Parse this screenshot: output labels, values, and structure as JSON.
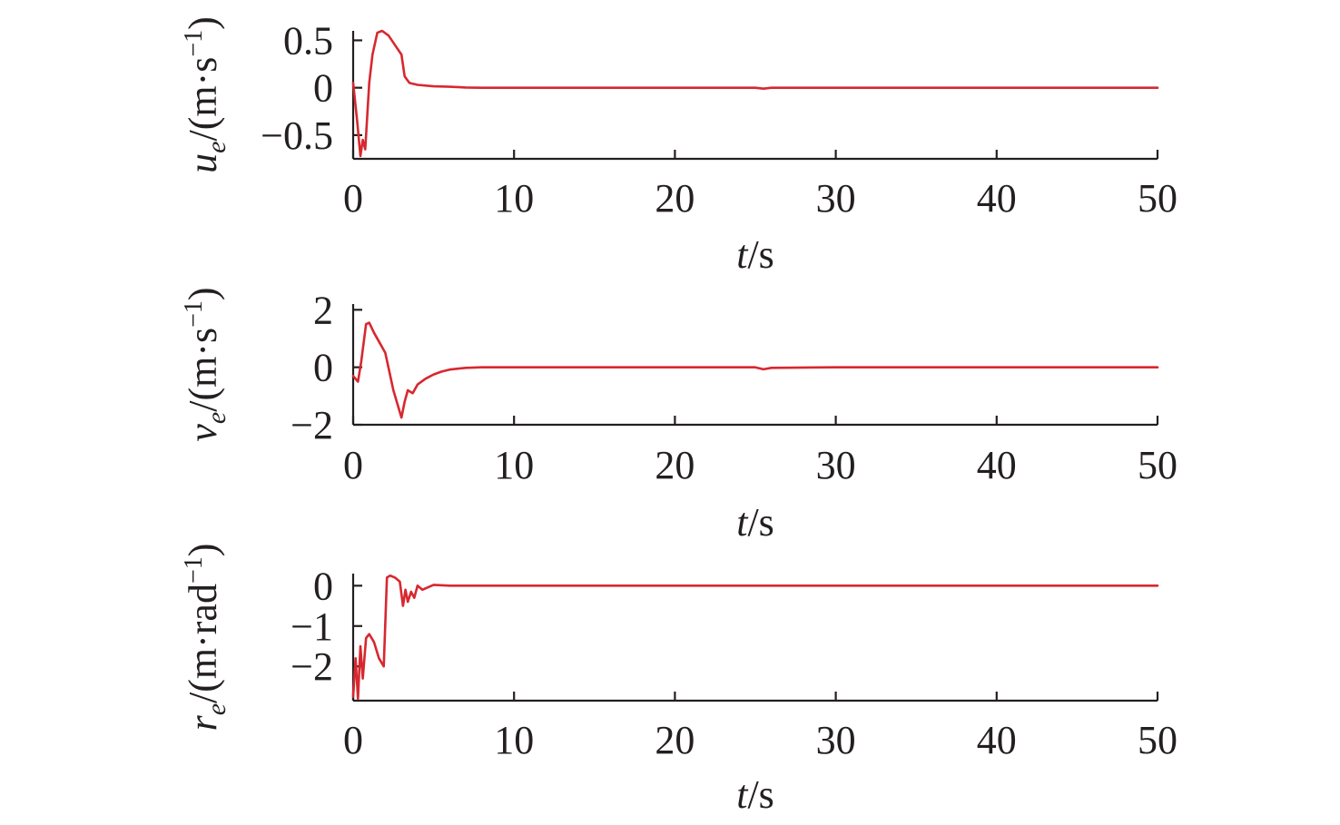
{
  "chart_data": [
    {
      "type": "line",
      "xlabel_italic": "t",
      "xlabel_rest": "/s",
      "ylabel": {
        "var": "u",
        "sub": "e",
        "unit": "/(m·s",
        "sup": "−1",
        "close": ")"
      },
      "xlim": [
        0,
        50
      ],
      "ylim": [
        -0.75,
        0.6
      ],
      "xticks": [
        0,
        10,
        20,
        30,
        40,
        50
      ],
      "xtick_labels": [
        "0",
        "10",
        "20",
        "30",
        "40",
        "50"
      ],
      "yticks": [
        0.5,
        0,
        -0.5
      ],
      "ytick_labels": [
        "0.5",
        "0",
        "−0.5"
      ],
      "grid": false,
      "series": [
        {
          "color": "#d7282f",
          "x": [
            0,
            0.25,
            0.45,
            0.6,
            0.75,
            1.0,
            1.2,
            1.5,
            1.8,
            2.2,
            2.6,
            3.0,
            3.2,
            3.5,
            4.0,
            5.0,
            6.0,
            7.0,
            8.0,
            10,
            20,
            25,
            25.5,
            26,
            30,
            40,
            50
          ],
          "y": [
            0.05,
            -0.35,
            -0.72,
            -0.55,
            -0.65,
            0.05,
            0.35,
            0.58,
            0.6,
            0.55,
            0.45,
            0.35,
            0.12,
            0.05,
            0.03,
            0.015,
            0.01,
            0.003,
            0.0,
            0.0,
            0.0,
            0.0,
            -0.01,
            0.0,
            0.0,
            0.0,
            0.0
          ]
        }
      ]
    },
    {
      "type": "line",
      "xlabel_italic": "t",
      "xlabel_rest": "/s",
      "ylabel": {
        "var": "v",
        "sub": "e",
        "unit": "/(m·s",
        "sup": "−1",
        "close": ")"
      },
      "xlim": [
        0,
        50
      ],
      "ylim": [
        -2,
        2.2
      ],
      "xticks": [
        0,
        10,
        20,
        30,
        40,
        50
      ],
      "xtick_labels": [
        "0",
        "10",
        "20",
        "30",
        "40",
        "50"
      ],
      "yticks": [
        2,
        0,
        -2
      ],
      "ytick_labels": [
        "2",
        "0",
        "−2"
      ],
      "grid": false,
      "series": [
        {
          "color": "#d7282f",
          "x": [
            0,
            0.3,
            0.5,
            0.8,
            1.0,
            1.3,
            1.7,
            2.0,
            2.5,
            3.0,
            3.2,
            3.4,
            3.7,
            4.0,
            4.5,
            5.0,
            5.5,
            6.0,
            7.0,
            8.0,
            10,
            25,
            25.5,
            26,
            30,
            50
          ],
          "y": [
            -0.3,
            -0.5,
            0.2,
            1.5,
            1.55,
            1.2,
            0.8,
            0.5,
            -0.8,
            -1.75,
            -1.2,
            -0.8,
            -0.9,
            -0.6,
            -0.4,
            -0.25,
            -0.15,
            -0.08,
            -0.02,
            0.0,
            0.0,
            0.0,
            -0.07,
            -0.02,
            0.0,
            0.0
          ]
        }
      ]
    },
    {
      "type": "line",
      "xlabel_italic": "t",
      "xlabel_rest": "/s",
      "ylabel": {
        "var": "r",
        "sub": "e",
        "unit": "/(m·rad",
        "sup": "−1",
        "close": ")"
      },
      "xlim": [
        0,
        50
      ],
      "ylim": [
        -2.85,
        0.3
      ],
      "xticks": [
        0,
        10,
        20,
        30,
        40,
        50
      ],
      "xtick_labels": [
        "0",
        "10",
        "20",
        "30",
        "40",
        "50"
      ],
      "yticks": [
        0,
        -1,
        -2
      ],
      "ytick_labels": [
        "0",
        "−1",
        "−2"
      ],
      "grid": false,
      "series": [
        {
          "color": "#d7282f",
          "x": [
            0,
            0.15,
            0.3,
            0.45,
            0.6,
            0.8,
            1.0,
            1.3,
            1.6,
            1.9,
            2.1,
            2.3,
            2.6,
            2.9,
            3.1,
            3.25,
            3.4,
            3.6,
            3.8,
            4.0,
            4.3,
            5.0,
            6.0,
            8.0,
            10,
            50
          ],
          "y": [
            -2.75,
            -1.8,
            -2.8,
            -1.5,
            -2.3,
            -1.3,
            -1.2,
            -1.4,
            -1.8,
            -2.0,
            0.2,
            0.25,
            0.2,
            0.1,
            -0.5,
            -0.1,
            -0.4,
            -0.15,
            -0.3,
            0.0,
            -0.1,
            0.02,
            0.0,
            0.0,
            0.0,
            0.0
          ]
        }
      ]
    }
  ]
}
